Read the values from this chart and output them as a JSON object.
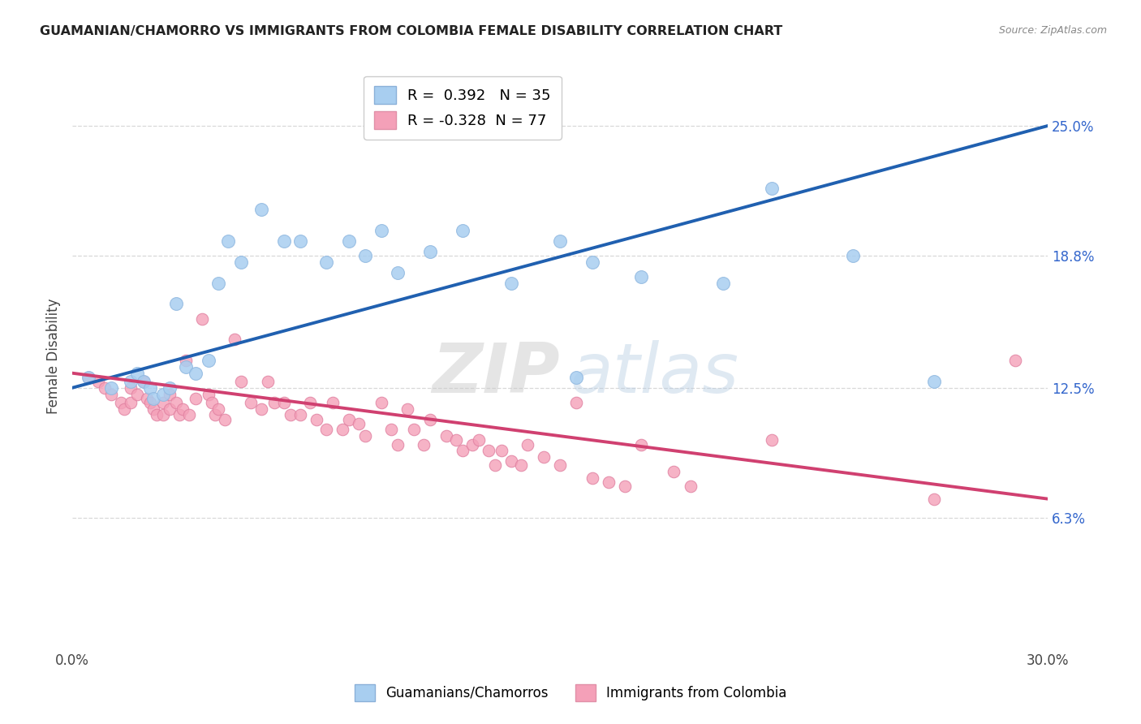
{
  "title": "GUAMANIAN/CHAMORRO VS IMMIGRANTS FROM COLOMBIA FEMALE DISABILITY CORRELATION CHART",
  "source": "Source: ZipAtlas.com",
  "ylabel": "Female Disability",
  "x_min": 0.0,
  "x_max": 0.3,
  "y_min": 0.0,
  "y_max": 0.28,
  "y_tick_right": [
    0.063,
    0.125,
    0.188,
    0.25
  ],
  "y_tick_right_labels": [
    "6.3%",
    "12.5%",
    "18.8%",
    "25.0%"
  ],
  "blue_R": 0.392,
  "blue_N": 35,
  "pink_R": -0.328,
  "pink_N": 77,
  "blue_color": "#a8cef0",
  "blue_edge_color": "#90b8e0",
  "blue_line_color": "#2060b0",
  "pink_color": "#f4a0b8",
  "pink_edge_color": "#e080a0",
  "pink_line_color": "#d04070",
  "dashed_line_color": "#aaaaaa",
  "legend_blue_label": "Guamanians/Chamorros",
  "legend_pink_label": "Immigrants from Colombia",
  "watermark_zip": "ZIP",
  "watermark_atlas": "atlas",
  "background_color": "#ffffff",
  "grid_color": "#d8d8d8",
  "blue_line_start_y": 0.125,
  "blue_line_end_y": 0.25,
  "pink_line_start_y": 0.132,
  "pink_line_end_y": 0.072,
  "blue_x": [
    0.005,
    0.012,
    0.018,
    0.02,
    0.022,
    0.024,
    0.025,
    0.028,
    0.03,
    0.032,
    0.035,
    0.038,
    0.042,
    0.045,
    0.048,
    0.052,
    0.058,
    0.065,
    0.07,
    0.078,
    0.085,
    0.09,
    0.095,
    0.1,
    0.11,
    0.12,
    0.135,
    0.15,
    0.155,
    0.16,
    0.175,
    0.2,
    0.215,
    0.24,
    0.265
  ],
  "blue_y": [
    0.13,
    0.125,
    0.128,
    0.132,
    0.128,
    0.125,
    0.12,
    0.122,
    0.125,
    0.165,
    0.135,
    0.132,
    0.138,
    0.175,
    0.195,
    0.185,
    0.21,
    0.195,
    0.195,
    0.185,
    0.195,
    0.188,
    0.2,
    0.18,
    0.19,
    0.2,
    0.175,
    0.195,
    0.13,
    0.185,
    0.178,
    0.175,
    0.22,
    0.188,
    0.128
  ],
  "pink_x": [
    0.005,
    0.008,
    0.01,
    0.012,
    0.015,
    0.016,
    0.018,
    0.018,
    0.02,
    0.022,
    0.023,
    0.024,
    0.025,
    0.026,
    0.028,
    0.028,
    0.03,
    0.03,
    0.032,
    0.033,
    0.034,
    0.035,
    0.036,
    0.038,
    0.04,
    0.042,
    0.043,
    0.044,
    0.045,
    0.047,
    0.05,
    0.052,
    0.055,
    0.058,
    0.06,
    0.062,
    0.065,
    0.067,
    0.07,
    0.073,
    0.075,
    0.078,
    0.08,
    0.083,
    0.085,
    0.088,
    0.09,
    0.095,
    0.098,
    0.1,
    0.103,
    0.105,
    0.108,
    0.11,
    0.115,
    0.118,
    0.12,
    0.123,
    0.125,
    0.128,
    0.13,
    0.132,
    0.135,
    0.138,
    0.14,
    0.145,
    0.15,
    0.155,
    0.16,
    0.165,
    0.17,
    0.175,
    0.185,
    0.19,
    0.215,
    0.265,
    0.29
  ],
  "pink_y": [
    0.13,
    0.128,
    0.125,
    0.122,
    0.118,
    0.115,
    0.125,
    0.118,
    0.122,
    0.128,
    0.12,
    0.118,
    0.115,
    0.112,
    0.118,
    0.112,
    0.122,
    0.115,
    0.118,
    0.112,
    0.115,
    0.138,
    0.112,
    0.12,
    0.158,
    0.122,
    0.118,
    0.112,
    0.115,
    0.11,
    0.148,
    0.128,
    0.118,
    0.115,
    0.128,
    0.118,
    0.118,
    0.112,
    0.112,
    0.118,
    0.11,
    0.105,
    0.118,
    0.105,
    0.11,
    0.108,
    0.102,
    0.118,
    0.105,
    0.098,
    0.115,
    0.105,
    0.098,
    0.11,
    0.102,
    0.1,
    0.095,
    0.098,
    0.1,
    0.095,
    0.088,
    0.095,
    0.09,
    0.088,
    0.098,
    0.092,
    0.088,
    0.118,
    0.082,
    0.08,
    0.078,
    0.098,
    0.085,
    0.078,
    0.1,
    0.072,
    0.138
  ]
}
